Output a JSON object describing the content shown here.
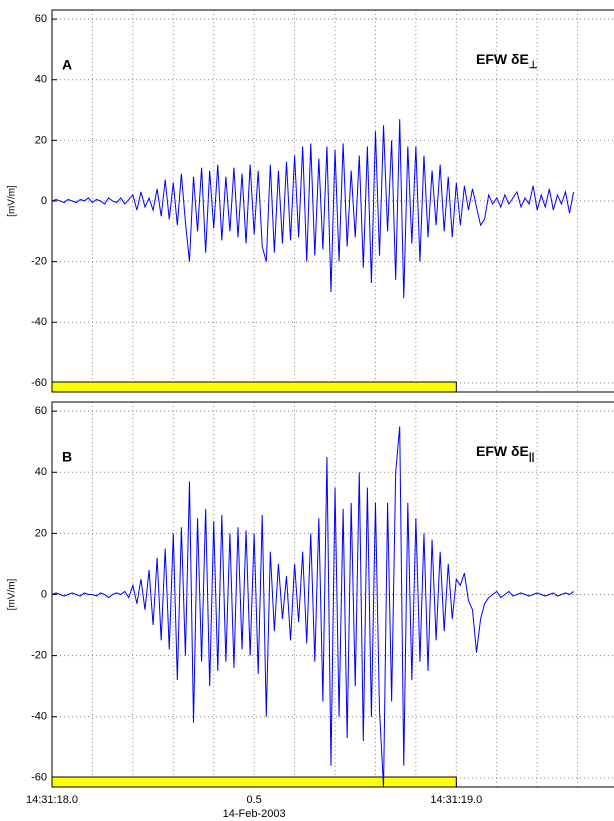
{
  "chart_data": [
    {
      "type": "line",
      "annotation": "A",
      "label": {
        "text": "EFW δE",
        "subscript": "⊥"
      },
      "ylabel": "[mV/m]",
      "xlim": [
        0,
        1.39
      ],
      "ylim": [
        -63,
        63
      ],
      "yticks": [
        -60,
        -40,
        -20,
        0,
        20,
        40,
        60
      ],
      "xgrid": [
        0.1,
        0.2,
        0.3,
        0.4,
        0.5,
        0.6,
        0.7,
        0.8,
        0.9,
        1.0,
        1.1,
        1.2,
        1.3
      ],
      "grid": true,
      "interval": {
        "x": [
          0,
          1.0
        ],
        "color": "#ffff00"
      },
      "x": [
        0,
        0.01,
        0.02,
        0.03,
        0.04,
        0.05,
        0.06,
        0.07,
        0.08,
        0.09,
        0.1,
        0.11,
        0.12,
        0.13,
        0.14,
        0.15,
        0.16,
        0.17,
        0.18,
        0.19,
        0.2,
        0.21,
        0.22,
        0.23,
        0.24,
        0.25,
        0.26,
        0.27,
        0.28,
        0.29,
        0.3,
        0.31,
        0.32,
        0.33,
        0.34,
        0.35,
        0.36,
        0.37,
        0.38,
        0.39,
        0.4,
        0.41,
        0.42,
        0.43,
        0.44,
        0.45,
        0.46,
        0.47,
        0.48,
        0.49,
        0.5,
        0.51,
        0.52,
        0.53,
        0.54,
        0.55,
        0.56,
        0.57,
        0.58,
        0.59,
        0.6,
        0.61,
        0.62,
        0.63,
        0.64,
        0.65,
        0.66,
        0.67,
        0.68,
        0.69,
        0.7,
        0.71,
        0.72,
        0.73,
        0.74,
        0.75,
        0.76,
        0.77,
        0.78,
        0.79,
        0.8,
        0.81,
        0.82,
        0.83,
        0.84,
        0.85,
        0.86,
        0.87,
        0.88,
        0.89,
        0.9,
        0.91,
        0.92,
        0.93,
        0.94,
        0.95,
        0.96,
        0.97,
        0.98,
        0.99,
        1.0,
        1.01,
        1.02,
        1.03,
        1.04,
        1.05,
        1.06,
        1.07,
        1.08,
        1.09,
        1.1,
        1.11,
        1.12,
        1.13,
        1.14,
        1.15,
        1.16,
        1.17,
        1.18,
        1.19,
        1.2,
        1.21,
        1.22,
        1.23,
        1.24,
        1.25,
        1.26,
        1.27,
        1.28,
        1.29
      ],
      "color": "#0000ff",
      "values": [
        0,
        0.5,
        0,
        -0.5,
        0.5,
        0,
        -0.5,
        0.5,
        0,
        1,
        -0.5,
        0.5,
        0,
        -1,
        1,
        0,
        -0.5,
        1,
        -1,
        0.5,
        2,
        -3,
        3,
        -2,
        1,
        -3,
        4,
        -5,
        7,
        -6,
        6,
        -8,
        9,
        -7,
        -20,
        8,
        -10,
        11,
        -17,
        10,
        -9,
        12,
        -13,
        8,
        -10,
        11,
        -12,
        9,
        -14,
        12,
        -11,
        10,
        -15,
        -20,
        12,
        -17,
        10,
        -14,
        13,
        -13,
        15,
        -12,
        18,
        -20,
        19,
        -18,
        14,
        -16,
        18,
        -30,
        17,
        -20,
        19,
        -15,
        10,
        -12,
        15,
        -22,
        18,
        -27,
        23,
        -18,
        25,
        -10,
        20,
        -26,
        27,
        -32,
        18,
        -14,
        18,
        -20,
        15,
        -12,
        10,
        -8,
        12,
        -10,
        8,
        -12,
        6,
        -8,
        5,
        -3,
        4,
        -2,
        -8,
        -6,
        2,
        -1,
        1,
        -2,
        2,
        -1,
        1,
        3,
        -2,
        1,
        -1,
        5,
        -3,
        2,
        -2,
        4,
        -3,
        2,
        -1,
        3,
        -4,
        3
      ]
    },
    {
      "type": "line",
      "annotation": "B",
      "label": {
        "text": "EFW δE",
        "subscript": "||"
      },
      "ylabel": "[mV/m]",
      "xlabel": "14-Feb-2003",
      "xlim": [
        0,
        1.39
      ],
      "ylim": [
        -63,
        63
      ],
      "yticks": [
        -60,
        -40,
        -20,
        0,
        20,
        40,
        60
      ],
      "xticks": [
        {
          "value": 0,
          "label": "14:31:18.0"
        },
        0.5,
        {
          "value": 1.0,
          "label": "14:31:19.0"
        }
      ],
      "xgrid": [
        0.1,
        0.2,
        0.3,
        0.4,
        0.5,
        0.6,
        0.7,
        0.8,
        0.9,
        1.0,
        1.1,
        1.2,
        1.3
      ],
      "grid": true,
      "interval": {
        "x": [
          0,
          1.0
        ],
        "color": "#ffff00"
      },
      "x": [
        0,
        0.01,
        0.02,
        0.03,
        0.04,
        0.05,
        0.06,
        0.07,
        0.08,
        0.09,
        0.1,
        0.11,
        0.12,
        0.13,
        0.14,
        0.15,
        0.16,
        0.17,
        0.18,
        0.19,
        0.2,
        0.21,
        0.22,
        0.23,
        0.24,
        0.25,
        0.26,
        0.27,
        0.28,
        0.29,
        0.3,
        0.31,
        0.32,
        0.33,
        0.34,
        0.35,
        0.36,
        0.37,
        0.38,
        0.39,
        0.4,
        0.41,
        0.42,
        0.43,
        0.44,
        0.45,
        0.46,
        0.47,
        0.48,
        0.49,
        0.5,
        0.51,
        0.52,
        0.53,
        0.54,
        0.55,
        0.56,
        0.57,
        0.58,
        0.59,
        0.6,
        0.61,
        0.62,
        0.63,
        0.64,
        0.65,
        0.66,
        0.67,
        0.68,
        0.69,
        0.7,
        0.71,
        0.72,
        0.73,
        0.74,
        0.75,
        0.76,
        0.77,
        0.78,
        0.79,
        0.8,
        0.81,
        0.82,
        0.83,
        0.84,
        0.85,
        0.86,
        0.87,
        0.88,
        0.89,
        0.9,
        0.91,
        0.92,
        0.93,
        0.94,
        0.95,
        0.96,
        0.97,
        0.98,
        0.99,
        1.0,
        1.01,
        1.02,
        1.03,
        1.04,
        1.05,
        1.06,
        1.07,
        1.08,
        1.09,
        1.1,
        1.11,
        1.12,
        1.13,
        1.14,
        1.15,
        1.16,
        1.17,
        1.18,
        1.19,
        1.2,
        1.21,
        1.22,
        1.23,
        1.24,
        1.25,
        1.26,
        1.27,
        1.28,
        1.29
      ],
      "color": "#0000ff",
      "values": [
        0,
        0.5,
        0,
        -0.5,
        0,
        0.5,
        0,
        -0.5,
        0.5,
        0,
        0,
        -0.5,
        0.5,
        0,
        -1,
        0,
        0.5,
        0,
        1,
        -1,
        3,
        -3,
        5,
        -5,
        8,
        -10,
        12,
        -15,
        15,
        -18,
        20,
        -28,
        22,
        -20,
        37,
        -42,
        25,
        -22,
        28,
        -30,
        24,
        -25,
        26,
        -22,
        20,
        -24,
        22,
        -18,
        21,
        -20,
        20,
        -26,
        26,
        -40,
        14,
        -12,
        10,
        -8,
        6,
        -15,
        10,
        -9,
        14,
        -16,
        20,
        -22,
        25,
        -35,
        45,
        -56,
        35,
        -40,
        28,
        -47,
        30,
        -30,
        40,
        -48,
        35,
        -40,
        30,
        -38,
        -63,
        30,
        -35,
        40,
        55,
        -56,
        30,
        -28,
        25,
        -22,
        20,
        -25,
        18,
        -15,
        14,
        -12,
        10,
        -8,
        5,
        3,
        7,
        -2,
        -5,
        -19,
        -8,
        -3,
        -1,
        0,
        1,
        -1,
        0,
        1,
        -0.5,
        0,
        0.5,
        0,
        -0.5,
        0,
        0.5,
        0,
        -0.5,
        0,
        0.5,
        -0.5,
        0,
        0.5,
        0,
        1
      ]
    }
  ]
}
